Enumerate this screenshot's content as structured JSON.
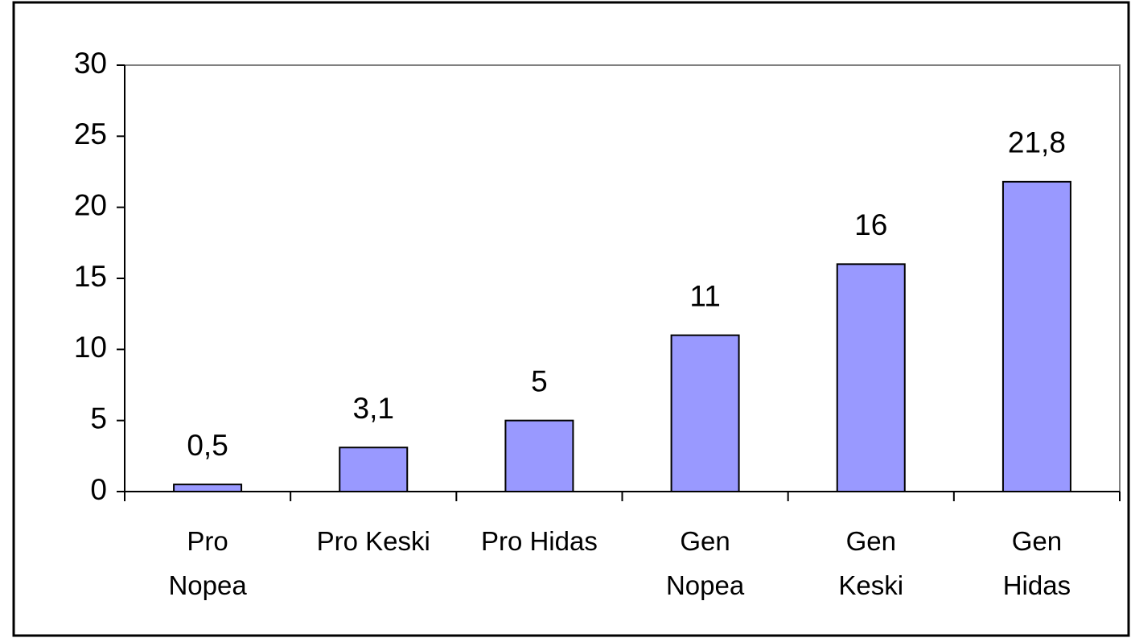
{
  "chart_data": {
    "type": "bar",
    "categories": [
      "Pro\nNopea",
      "Pro Keski",
      "Pro Hidas",
      "Gen\nNopea",
      "Gen\nKeski",
      "Gen\nHidas"
    ],
    "values": [
      0.5,
      3.1,
      5,
      11,
      16,
      21.8
    ],
    "value_labels": [
      "0,5",
      "3,1",
      "5",
      "11",
      "16",
      "21,8"
    ],
    "color": "#9999ff",
    "ylim": [
      0,
      30
    ],
    "yticks": [
      0,
      5,
      10,
      15,
      20,
      25,
      30
    ],
    "grid": false
  }
}
